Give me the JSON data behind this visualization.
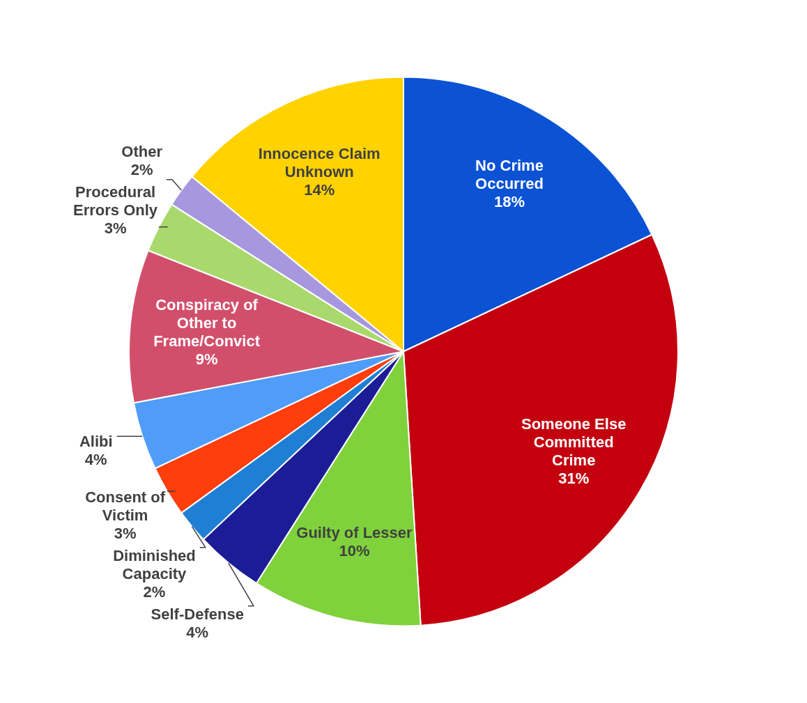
{
  "chart_data": {
    "type": "pie",
    "categories": [
      "No Crime Occurred",
      "Someone Else Committed Crime",
      "Guilty of Lesser",
      "Self-Defense",
      "Diminished Capacity",
      "Consent of Victim",
      "Alibi",
      "Conspiracy of Other to Frame/Convict",
      "Procedural Errors Only",
      "Other",
      "Innocence Claim Unknown"
    ],
    "values": [
      18,
      31,
      10,
      4,
      2,
      3,
      4,
      9,
      3,
      2,
      14
    ],
    "value_labels": [
      "18%",
      "31%",
      "10%",
      "4%",
      "2%",
      "3%",
      "4%",
      "9%",
      "3%",
      "2%",
      "14%"
    ],
    "colors": [
      "#0b52d4",
      "#c4000f",
      "#80d23c",
      "#1c1c96",
      "#1f7fd4",
      "#ff3d0d",
      "#4f9df8",
      "#d24f6c",
      "#a9d96c",
      "#a697df",
      "#ffd200"
    ],
    "legend": false
  }
}
